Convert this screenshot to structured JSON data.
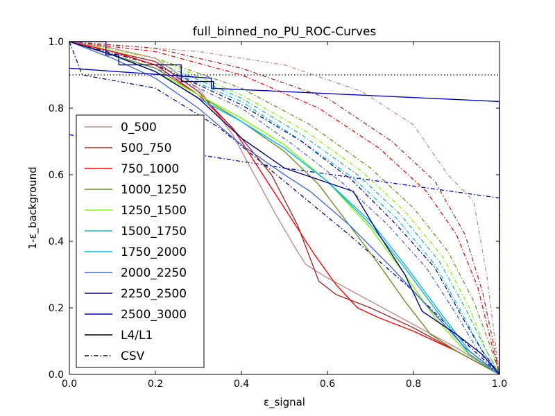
{
  "chart_data": {
    "type": "line",
    "title": "full_binned_no_PU_ROC-Curves",
    "xlabel": "ε_signal",
    "ylabel": "1-ε_background",
    "xlim": [
      0,
      1
    ],
    "ylim": [
      0,
      1
    ],
    "x_ticks": [
      "0.0",
      "0.2",
      "0.4",
      "0.6",
      "0.8",
      "1.0"
    ],
    "y_ticks": [
      "0.0",
      "0.2",
      "0.4",
      "0.6",
      "0.8",
      "1.0"
    ],
    "grid": false,
    "legend_position": "lower-left",
    "reference_line": {
      "y": 0.9,
      "style": "dotted",
      "color": "#000000"
    },
    "style_legend": [
      {
        "label": "L4/L1",
        "style": "solid"
      },
      {
        "label": "CSV",
        "style": "dashdot"
      }
    ],
    "series": [
      {
        "name": "0_500",
        "color": "#c08c8c",
        "l4l1": [
          [
            0,
            1
          ],
          [
            0.1,
            0.98
          ],
          [
            0.2,
            0.95
          ],
          [
            0.3,
            0.86
          ],
          [
            0.38,
            0.72
          ],
          [
            0.43,
            0.6
          ],
          [
            0.48,
            0.48
          ],
          [
            0.53,
            0.37
          ],
          [
            0.55,
            0.33
          ],
          [
            0.6,
            0.29
          ],
          [
            0.7,
            0.22
          ],
          [
            0.8,
            0.15
          ],
          [
            0.9,
            0.08
          ],
          [
            1,
            0
          ]
        ],
        "csv": [
          [
            0,
            1
          ],
          [
            0.1,
            0.99
          ],
          [
            0.3,
            0.97
          ],
          [
            0.5,
            0.93
          ],
          [
            0.68,
            0.85
          ],
          [
            0.8,
            0.75
          ],
          [
            0.88,
            0.6
          ],
          [
            0.94,
            0.52
          ],
          [
            0.97,
            0.3
          ],
          [
            1,
            0
          ]
        ]
      },
      {
        "name": "500_750",
        "color": "#a52a2a",
        "l4l1": [
          [
            0,
            1
          ],
          [
            0.1,
            0.97
          ],
          [
            0.2,
            0.94
          ],
          [
            0.3,
            0.85
          ],
          [
            0.4,
            0.71
          ],
          [
            0.47,
            0.6
          ],
          [
            0.53,
            0.45
          ],
          [
            0.58,
            0.28
          ],
          [
            0.62,
            0.24
          ],
          [
            0.7,
            0.2
          ],
          [
            0.8,
            0.14
          ],
          [
            0.9,
            0.07
          ],
          [
            1,
            0
          ]
        ],
        "csv": [
          [
            0,
            1
          ],
          [
            0.2,
            0.98
          ],
          [
            0.4,
            0.92
          ],
          [
            0.6,
            0.83
          ],
          [
            0.75,
            0.7
          ],
          [
            0.85,
            0.58
          ],
          [
            0.92,
            0.42
          ],
          [
            0.96,
            0.25
          ],
          [
            0.985,
            0.1
          ],
          [
            1,
            0
          ]
        ]
      },
      {
        "name": "750_1000",
        "color": "#ff0000",
        "l4l1": [
          [
            0,
            1
          ],
          [
            0.1,
            0.97
          ],
          [
            0.2,
            0.93
          ],
          [
            0.3,
            0.84
          ],
          [
            0.38,
            0.74
          ],
          [
            0.45,
            0.6
          ],
          [
            0.52,
            0.46
          ],
          [
            0.57,
            0.36
          ],
          [
            0.62,
            0.27
          ],
          [
            0.67,
            0.2
          ],
          [
            0.72,
            0.17
          ],
          [
            0.8,
            0.13
          ],
          [
            0.9,
            0.07
          ],
          [
            1,
            0
          ]
        ],
        "csv": [
          [
            0,
            1
          ],
          [
            0.2,
            0.97
          ],
          [
            0.4,
            0.9
          ],
          [
            0.58,
            0.8
          ],
          [
            0.72,
            0.68
          ],
          [
            0.83,
            0.55
          ],
          [
            0.9,
            0.42
          ],
          [
            0.95,
            0.26
          ],
          [
            0.98,
            0.1
          ],
          [
            1,
            0
          ]
        ]
      },
      {
        "name": "1000_1250",
        "color": "#6b8e23",
        "l4l1": [
          [
            0,
            1
          ],
          [
            0.1,
            0.96
          ],
          [
            0.2,
            0.92
          ],
          [
            0.3,
            0.84
          ],
          [
            0.4,
            0.76
          ],
          [
            0.5,
            0.67
          ],
          [
            0.58,
            0.57
          ],
          [
            0.65,
            0.45
          ],
          [
            0.72,
            0.33
          ],
          [
            0.78,
            0.22
          ],
          [
            0.84,
            0.12
          ],
          [
            0.9,
            0.07
          ],
          [
            1,
            0
          ]
        ],
        "csv": [
          [
            0,
            1
          ],
          [
            0.2,
            0.95
          ],
          [
            0.4,
            0.86
          ],
          [
            0.56,
            0.75
          ],
          [
            0.7,
            0.62
          ],
          [
            0.8,
            0.5
          ],
          [
            0.88,
            0.37
          ],
          [
            0.94,
            0.22
          ],
          [
            0.98,
            0.08
          ],
          [
            1,
            0
          ]
        ]
      },
      {
        "name": "1250_1500",
        "color": "#7cfc00",
        "l4l1": [
          [
            0,
            1
          ],
          [
            0.1,
            0.96
          ],
          [
            0.2,
            0.91
          ],
          [
            0.3,
            0.84
          ],
          [
            0.4,
            0.77
          ],
          [
            0.5,
            0.69
          ],
          [
            0.6,
            0.58
          ],
          [
            0.7,
            0.44
          ],
          [
            0.78,
            0.3
          ],
          [
            0.85,
            0.17
          ],
          [
            0.92,
            0.07
          ],
          [
            1,
            0
          ]
        ],
        "csv": [
          [
            0,
            1
          ],
          [
            0.2,
            0.95
          ],
          [
            0.4,
            0.84
          ],
          [
            0.55,
            0.73
          ],
          [
            0.68,
            0.61
          ],
          [
            0.78,
            0.49
          ],
          [
            0.87,
            0.35
          ],
          [
            0.93,
            0.2
          ],
          [
            0.97,
            0.07
          ],
          [
            1,
            0
          ]
        ]
      },
      {
        "name": "1500_1750",
        "color": "#20b2aa",
        "l4l1": [
          [
            0,
            1
          ],
          [
            0.1,
            0.96
          ],
          [
            0.2,
            0.91
          ],
          [
            0.3,
            0.83
          ],
          [
            0.4,
            0.76
          ],
          [
            0.5,
            0.68
          ],
          [
            0.6,
            0.58
          ],
          [
            0.7,
            0.45
          ],
          [
            0.78,
            0.32
          ],
          [
            0.86,
            0.18
          ],
          [
            0.93,
            0.06
          ],
          [
            1,
            0
          ]
        ],
        "csv": [
          [
            0,
            1
          ],
          [
            0.2,
            0.94
          ],
          [
            0.4,
            0.83
          ],
          [
            0.54,
            0.72
          ],
          [
            0.67,
            0.6
          ],
          [
            0.77,
            0.48
          ],
          [
            0.86,
            0.34
          ],
          [
            0.92,
            0.2
          ],
          [
            0.97,
            0.07
          ],
          [
            1,
            0
          ]
        ]
      },
      {
        "name": "1750_2000",
        "color": "#00bfff",
        "l4l1": [
          [
            0,
            1
          ],
          [
            0.1,
            0.96
          ],
          [
            0.2,
            0.91
          ],
          [
            0.3,
            0.83
          ],
          [
            0.4,
            0.76
          ],
          [
            0.5,
            0.68
          ],
          [
            0.6,
            0.58
          ],
          [
            0.7,
            0.46
          ],
          [
            0.78,
            0.33
          ],
          [
            0.86,
            0.19
          ],
          [
            0.93,
            0.07
          ],
          [
            1,
            0
          ]
        ],
        "csv": [
          [
            0,
            1
          ],
          [
            0.2,
            0.93
          ],
          [
            0.4,
            0.82
          ],
          [
            0.53,
            0.71
          ],
          [
            0.66,
            0.59
          ],
          [
            0.76,
            0.47
          ],
          [
            0.85,
            0.33
          ],
          [
            0.91,
            0.19
          ],
          [
            0.96,
            0.07
          ],
          [
            1,
            0
          ]
        ]
      },
      {
        "name": "2000_2250",
        "color": "#4169e1",
        "l4l1": [
          [
            0,
            1
          ],
          [
            0.1,
            0.95
          ],
          [
            0.2,
            0.89
          ],
          [
            0.3,
            0.8
          ],
          [
            0.4,
            0.69
          ],
          [
            0.5,
            0.6
          ],
          [
            0.56,
            0.55
          ],
          [
            0.65,
            0.45
          ],
          [
            0.75,
            0.32
          ],
          [
            0.85,
            0.18
          ],
          [
            0.92,
            0.08
          ],
          [
            1,
            0
          ]
        ],
        "csv": [
          [
            0,
            1
          ],
          [
            0.2,
            0.92
          ],
          [
            0.4,
            0.8
          ],
          [
            0.52,
            0.69
          ],
          [
            0.64,
            0.57
          ],
          [
            0.74,
            0.45
          ],
          [
            0.83,
            0.32
          ],
          [
            0.9,
            0.18
          ],
          [
            0.95,
            0.07
          ],
          [
            1,
            0
          ]
        ]
      },
      {
        "name": "2250_2500",
        "color": "#000080",
        "l4l1": [
          [
            0,
            1
          ],
          [
            0.1,
            0.96
          ],
          [
            0.2,
            0.91
          ],
          [
            0.3,
            0.83
          ],
          [
            0.4,
            0.71
          ],
          [
            0.5,
            0.62
          ],
          [
            0.66,
            0.55
          ],
          [
            0.72,
            0.42
          ],
          [
            0.78,
            0.3
          ],
          [
            0.82,
            0.19
          ],
          [
            0.9,
            0.12
          ],
          [
            0.96,
            0.06
          ],
          [
            1,
            0
          ]
        ],
        "csv": [
          [
            0,
            1
          ],
          [
            0.2,
            0.93
          ],
          [
            0.4,
            0.81
          ],
          [
            0.54,
            0.7
          ],
          [
            0.66,
            0.58
          ],
          [
            0.76,
            0.45
          ],
          [
            0.85,
            0.32
          ],
          [
            0.91,
            0.18
          ],
          [
            0.96,
            0.07
          ],
          [
            1,
            0
          ]
        ]
      },
      {
        "name": "2500_3000",
        "color": "#0000cd",
        "l4l1": [
          [
            0,
            0.92
          ],
          [
            0.33,
            0.89
          ],
          [
            0.33,
            0.86
          ],
          [
            1,
            0.82
          ],
          [
            1,
            0
          ]
        ],
        "csv": [
          [
            0,
            0.72
          ],
          [
            0.5,
            0.62
          ],
          [
            1,
            0.53
          ],
          [
            1,
            0
          ]
        ]
      }
    ],
    "step_overlay": {
      "color": "#000080",
      "points": [
        [
          0,
          1
        ],
        [
          0.085,
          1
        ],
        [
          0.085,
          0.96
        ],
        [
          0.115,
          0.96
        ],
        [
          0.115,
          0.93
        ],
        [
          0.26,
          0.93
        ],
        [
          0.26,
          0.88
        ],
        [
          0.335,
          0.88
        ],
        [
          0.335,
          0.86
        ]
      ]
    },
    "extra_dashdot": {
      "color": "#000080",
      "points": [
        [
          0,
          1
        ],
        [
          0.03,
          0.9
        ],
        [
          0.2,
          0.86
        ],
        [
          0.35,
          0.74
        ],
        [
          0.5,
          0.58
        ],
        [
          0.65,
          0.42
        ],
        [
          0.8,
          0.25
        ],
        [
          0.9,
          0.12
        ],
        [
          1,
          0
        ]
      ]
    }
  }
}
